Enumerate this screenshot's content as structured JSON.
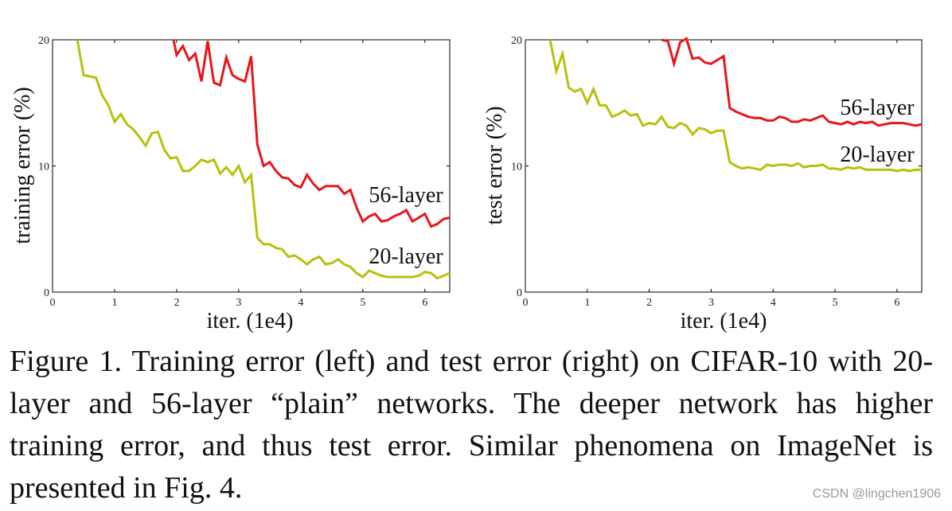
{
  "caption": "Figure 1. Training error (left) and test error (right) on CIFAR-10 with 20-layer and 56-layer “plain” networks. The deeper network has higher training error, and thus test error. Similar phenomena on ImageNet is presented in Fig. 4.",
  "watermark": "CSDN @lingchen1906",
  "colors": {
    "layer56": "#e8161b",
    "layer20": "#b8c10a",
    "axis": "#000000"
  },
  "chart_data": [
    {
      "type": "line",
      "xlabel": "iter. (1e4)",
      "ylabel": "training error (%)",
      "xlim": [
        0,
        6.4
      ],
      "ylim": [
        0,
        20
      ],
      "xticks": [
        "0",
        "1",
        "2",
        "3",
        "4",
        "5",
        "6"
      ],
      "yticks": [
        "0",
        "10",
        "20"
      ],
      "series": [
        {
          "name": "56-layer",
          "color": "#e8161b",
          "x": [
            1.95,
            2.0,
            2.1,
            2.2,
            2.3,
            2.4,
            2.5,
            2.6,
            2.7,
            2.8,
            2.9,
            3.0,
            3.1,
            3.2,
            3.3,
            3.4,
            3.5,
            3.6,
            3.7,
            3.8,
            3.9,
            4.0,
            4.1,
            4.2,
            4.3,
            4.4,
            4.5,
            4.6,
            4.7,
            4.8,
            4.9,
            5.0,
            5.1,
            5.2,
            5.3,
            5.4,
            5.5,
            5.6,
            5.7,
            5.8,
            5.9,
            6.0,
            6.1,
            6.2,
            6.3,
            6.4
          ],
          "values": [
            20.0,
            18.8,
            19.5,
            18.4,
            18.9,
            16.7,
            19.9,
            16.6,
            16.4,
            18.6,
            17.2,
            16.9,
            16.7,
            18.7,
            11.7,
            10.0,
            10.3,
            9.6,
            9.1,
            9.0,
            8.5,
            8.3,
            9.3,
            8.6,
            8.1,
            8.4,
            8.4,
            8.4,
            7.8,
            8.1,
            6.7,
            5.6,
            6.0,
            6.2,
            5.6,
            5.7,
            6.0,
            6.2,
            6.5,
            5.6,
            5.9,
            6.2,
            5.2,
            5.4,
            5.8,
            5.9
          ]
        },
        {
          "name": "20-layer",
          "color": "#b8c10a",
          "x": [
            0.4,
            0.5,
            0.6,
            0.7,
            0.8,
            0.9,
            1.0,
            1.1,
            1.2,
            1.3,
            1.4,
            1.5,
            1.6,
            1.7,
            1.8,
            1.9,
            2.0,
            2.1,
            2.2,
            2.3,
            2.4,
            2.5,
            2.6,
            2.7,
            2.8,
            2.9,
            3.0,
            3.1,
            3.2,
            3.3,
            3.4,
            3.5,
            3.6,
            3.7,
            3.8,
            3.9,
            4.0,
            4.1,
            4.2,
            4.3,
            4.4,
            4.5,
            4.6,
            4.7,
            4.8,
            4.9,
            5.0,
            5.1,
            5.2,
            5.3,
            5.4,
            5.5,
            5.6,
            5.7,
            5.8,
            5.9,
            6.0,
            6.1,
            6.2,
            6.3,
            6.4
          ],
          "values": [
            20.0,
            17.2,
            17.1,
            17.0,
            15.6,
            14.8,
            13.5,
            14.1,
            13.3,
            12.9,
            12.3,
            11.6,
            12.6,
            12.7,
            11.3,
            10.6,
            10.7,
            9.6,
            9.6,
            10.0,
            10.5,
            10.3,
            10.5,
            9.4,
            9.9,
            9.3,
            10.0,
            8.7,
            9.3,
            4.3,
            3.8,
            3.8,
            3.5,
            3.4,
            2.8,
            2.9,
            2.6,
            2.2,
            2.6,
            2.8,
            2.2,
            2.3,
            2.6,
            2.2,
            2.0,
            1.5,
            1.2,
            1.7,
            1.5,
            1.3,
            1.2,
            1.2,
            1.2,
            1.2,
            1.2,
            1.3,
            1.6,
            1.5,
            1.1,
            1.3,
            1.5
          ]
        }
      ]
    },
    {
      "type": "line",
      "xlabel": "iter. (1e4)",
      "ylabel": "test error (%)",
      "xlim": [
        0,
        6.4
      ],
      "ylim": [
        0,
        20
      ],
      "xticks": [
        "0",
        "1",
        "2",
        "3",
        "4",
        "5",
        "6"
      ],
      "yticks": [
        "0",
        "10",
        "20"
      ],
      "series": [
        {
          "name": "56-layer",
          "color": "#e8161b",
          "x": [
            2.2,
            2.3,
            2.4,
            2.5,
            2.6,
            2.7,
            2.8,
            2.9,
            3.0,
            3.1,
            3.2,
            3.3,
            3.4,
            3.5,
            3.6,
            3.7,
            3.8,
            3.9,
            4.0,
            4.1,
            4.2,
            4.3,
            4.4,
            4.5,
            4.6,
            4.7,
            4.8,
            4.9,
            5.0,
            5.1,
            5.2,
            5.3,
            5.4,
            5.5,
            5.6,
            5.7,
            5.8,
            5.9,
            6.0,
            6.1,
            6.2,
            6.3,
            6.4
          ],
          "values": [
            20.0,
            19.9,
            18.1,
            19.8,
            20.1,
            18.5,
            18.6,
            18.2,
            18.1,
            18.4,
            18.7,
            14.6,
            14.3,
            14.1,
            13.9,
            13.8,
            13.8,
            13.6,
            13.6,
            13.9,
            13.8,
            13.5,
            13.5,
            13.7,
            13.6,
            13.8,
            14.0,
            13.5,
            13.4,
            13.3,
            13.5,
            13.3,
            13.5,
            13.4,
            13.5,
            13.2,
            13.3,
            13.4,
            13.4,
            13.4,
            13.3,
            13.2,
            13.3
          ]
        },
        {
          "name": "20-layer",
          "color": "#b8c10a",
          "x": [
            0.4,
            0.5,
            0.6,
            0.7,
            0.8,
            0.9,
            1.0,
            1.1,
            1.2,
            1.3,
            1.4,
            1.5,
            1.6,
            1.7,
            1.8,
            1.9,
            2.0,
            2.1,
            2.2,
            2.3,
            2.4,
            2.5,
            2.6,
            2.7,
            2.8,
            2.9,
            3.0,
            3.1,
            3.2,
            3.3,
            3.4,
            3.5,
            3.6,
            3.7,
            3.8,
            3.9,
            4.0,
            4.1,
            4.2,
            4.3,
            4.4,
            4.5,
            4.6,
            4.7,
            4.8,
            4.9,
            5.0,
            5.1,
            5.2,
            5.3,
            5.4,
            5.5,
            5.6,
            5.7,
            5.8,
            5.9,
            6.0,
            6.1,
            6.2,
            6.3,
            6.4
          ],
          "values": [
            20.0,
            17.5,
            18.9,
            16.2,
            15.9,
            16.1,
            15.0,
            16.1,
            14.8,
            14.8,
            13.9,
            14.1,
            14.4,
            14.0,
            14.1,
            13.2,
            13.4,
            13.3,
            13.9,
            13.1,
            13.0,
            13.4,
            13.2,
            12.5,
            13.0,
            12.9,
            12.6,
            12.8,
            12.8,
            10.3,
            10.0,
            9.8,
            9.9,
            9.8,
            9.7,
            10.1,
            10.0,
            10.1,
            10.1,
            10.0,
            10.2,
            9.9,
            10.0,
            10.0,
            10.1,
            9.8,
            9.8,
            9.7,
            9.9,
            9.8,
            9.9,
            9.7,
            9.7,
            9.7,
            9.7,
            9.7,
            9.6,
            9.7,
            9.6,
            9.7,
            9.7
          ]
        }
      ]
    }
  ]
}
